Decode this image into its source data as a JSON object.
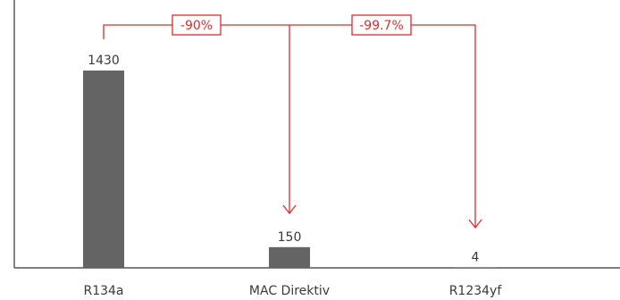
{
  "chart_data": {
    "type": "bar",
    "categories": [
      "R134a",
      "MAC Direktiv",
      "R1234yf"
    ],
    "values": [
      1430,
      150,
      4
    ],
    "ylim": [
      0,
      1500
    ],
    "grid": false,
    "annotations": [
      {
        "from": "R134a",
        "to": "MAC Direktiv",
        "label": "-90%"
      },
      {
        "from": "R134a",
        "to": "R1234yf",
        "label": "-99.7%"
      }
    ]
  },
  "colors": {
    "bar": "#646464",
    "axis": "#333333",
    "annotation": "#e3292a",
    "text": "#3a3a3a",
    "background": "#ffffff"
  }
}
